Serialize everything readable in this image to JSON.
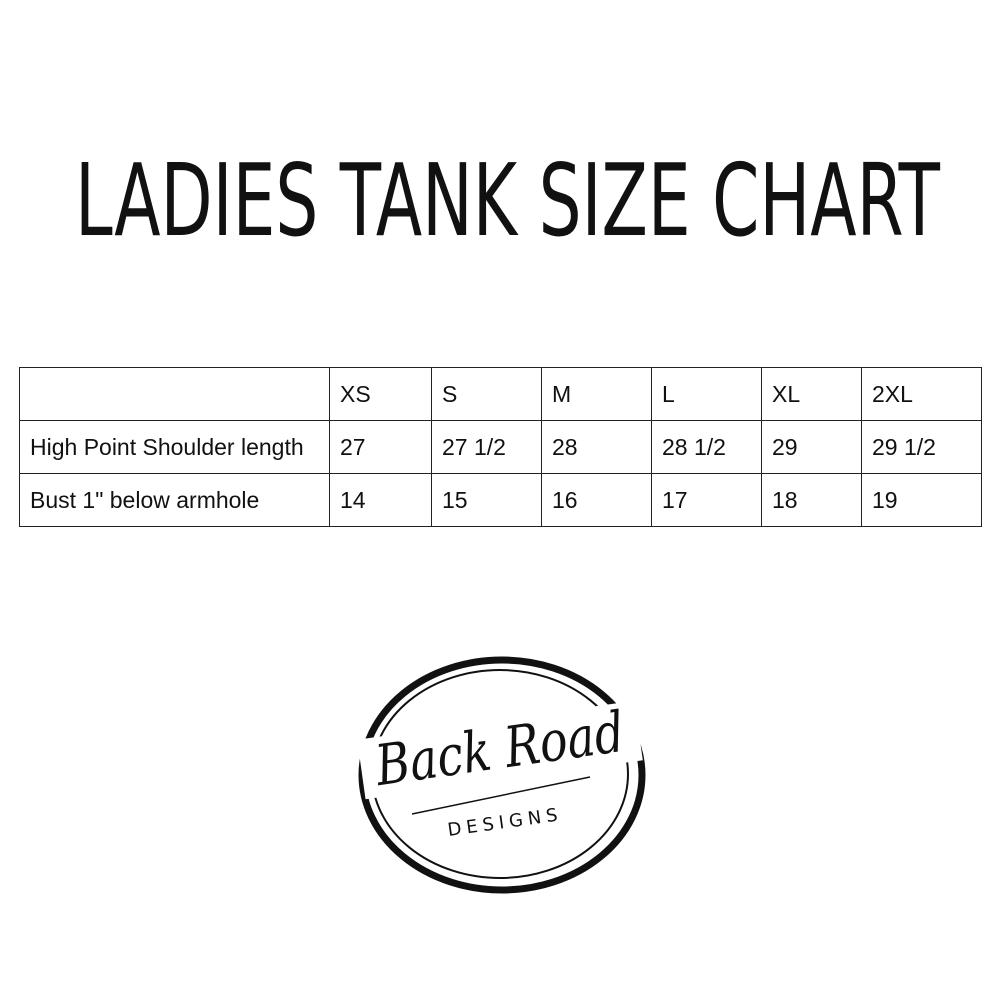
{
  "title": "LADIES TANK SIZE CHART",
  "table": {
    "headers": [
      "",
      "XS",
      "S",
      "M",
      "L",
      "XL",
      "2XL"
    ],
    "rows": [
      {
        "label": "High Point Shoulder length",
        "values": [
          "27",
          "27 1/2",
          "28",
          "28 1/2",
          "29",
          "29 1/2"
        ]
      },
      {
        "label": "Bust 1\" below armhole",
        "values": [
          "14",
          "15",
          "16",
          "17",
          "18",
          "19"
        ]
      }
    ]
  },
  "logo": {
    "script": "Back Road",
    "subtitle": "DESIGNS"
  }
}
